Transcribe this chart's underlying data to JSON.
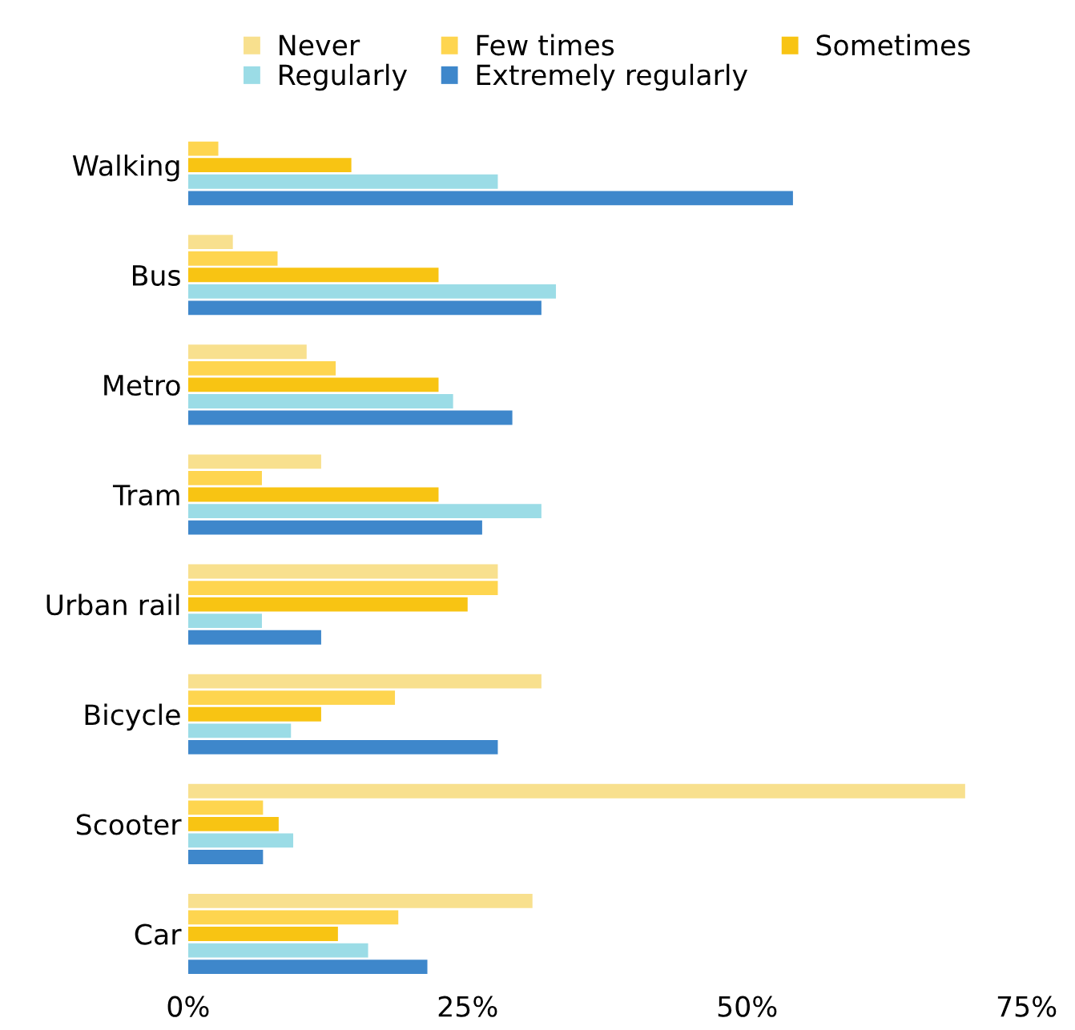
{
  "chart_data": {
    "type": "bar",
    "orientation": "horizontal",
    "categories": [
      "Walking",
      "Bus",
      "Metro",
      "Tram",
      "Urban rail",
      "Bicycle",
      "Scooter",
      "Car"
    ],
    "series": [
      {
        "name": "Never",
        "color": "#f8e08e",
        "values": [
          0,
          4.0,
          10.6,
          11.9,
          27.7,
          31.6,
          69.5,
          30.8
        ]
      },
      {
        "name": "Few times",
        "color": "#fed54f",
        "values": [
          2.7,
          8.0,
          13.2,
          6.6,
          27.7,
          18.5,
          6.7,
          18.8
        ]
      },
      {
        "name": "Sometimes",
        "color": "#f8c413",
        "values": [
          14.6,
          22.4,
          22.4,
          22.4,
          25.0,
          11.9,
          8.1,
          13.4
        ]
      },
      {
        "name": "Regularly",
        "color": "#9bdce6",
        "values": [
          27.7,
          32.9,
          23.7,
          31.6,
          6.6,
          9.2,
          9.4,
          16.1
        ]
      },
      {
        "name": "Extremely regularly",
        "color": "#3e87cb",
        "values": [
          54.1,
          31.6,
          29.0,
          26.3,
          11.9,
          27.7,
          6.7,
          21.4
        ]
      }
    ],
    "xlim": [
      0,
      75
    ],
    "xticks": [
      {
        "value": 0,
        "label": "0%"
      },
      {
        "value": 25,
        "label": "25%"
      },
      {
        "value": 50,
        "label": "50%"
      },
      {
        "value": 75,
        "label": "75%"
      }
    ],
    "grid": false,
    "legend": "top"
  }
}
